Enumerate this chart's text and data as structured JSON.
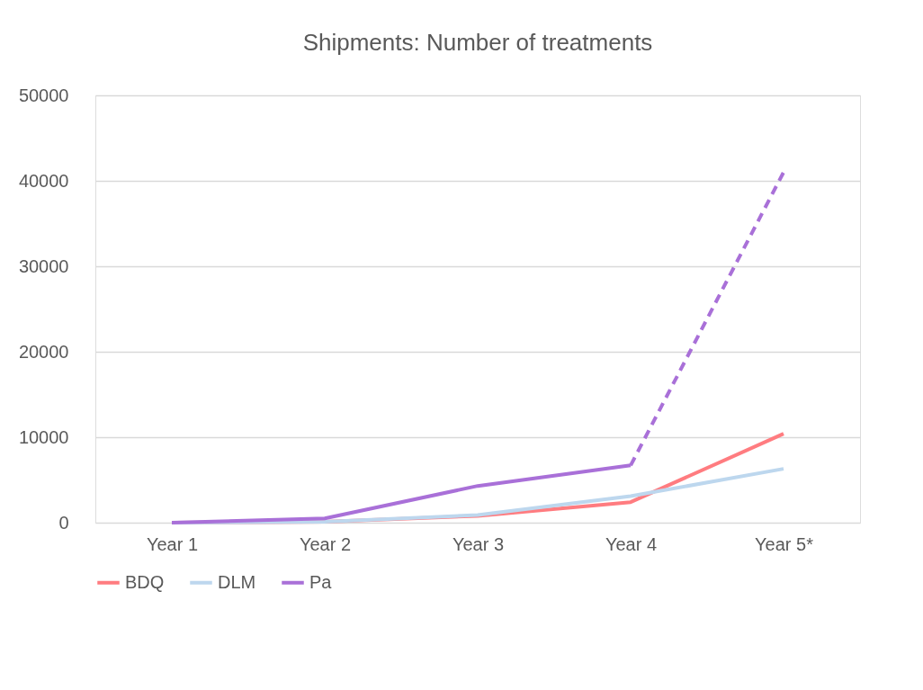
{
  "chart_data": {
    "type": "line",
    "title": "Shipments: Number of treatments",
    "categories": [
      "Year 1",
      "Year 2",
      "Year 3",
      "Year 4",
      "Year 5*"
    ],
    "series": [
      {
        "name": "BDQ",
        "color": "#ff7c80",
        "values": [
          0,
          100,
          800,
          2400,
          10400
        ]
      },
      {
        "name": "DLM",
        "color": "#bdd7ee",
        "values": [
          0,
          100,
          900,
          3100,
          6300
        ]
      },
      {
        "name": "Pa",
        "color": "#a970d8",
        "values": [
          0,
          500,
          4300,
          6700,
          null
        ]
      },
      {
        "color": "#a970d8",
        "values": [
          null,
          null,
          null,
          6700,
          41000
        ],
        "line_style": "dashed"
      }
    ],
    "ylim": [
      0,
      50000
    ],
    "yticks": [
      0,
      10000,
      20000,
      30000,
      40000,
      50000
    ],
    "grid": "y",
    "legend": "bottom",
    "marker": "none",
    "line_style": "solid"
  }
}
